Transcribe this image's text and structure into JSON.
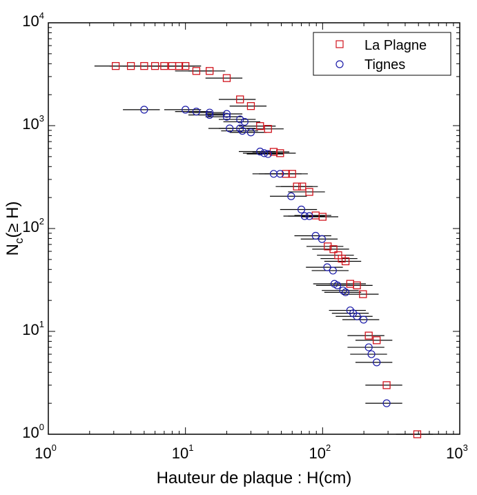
{
  "chart_data": {
    "type": "scatter",
    "xlabel": "Hauteur de plaque : H(cm)",
    "ylabel": {
      "main": "N",
      "sub": "c",
      "rest": "(≥ H)"
    },
    "x_scale": "log",
    "y_scale": "log",
    "xlim": [
      1,
      1000
    ],
    "ylim": [
      1,
      10000
    ],
    "x_ticks": [
      {
        "base": "10",
        "exp": "0",
        "value": 1
      },
      {
        "base": "10",
        "exp": "1",
        "value": 10
      },
      {
        "base": "10",
        "exp": "2",
        "value": 100
      },
      {
        "base": "10",
        "exp": "3",
        "value": 1000
      }
    ],
    "y_ticks": [
      {
        "base": "10",
        "exp": "0",
        "value": 1
      },
      {
        "base": "10",
        "exp": "1",
        "value": 10
      },
      {
        "base": "10",
        "exp": "2",
        "value": 100
      },
      {
        "base": "10",
        "exp": "3",
        "value": 1000
      },
      {
        "base": "10",
        "exp": "4",
        "value": 10000
      }
    ],
    "grid": false,
    "legend_position": "top-right",
    "x_error_relative": 0.3,
    "series": [
      {
        "name": "La Plagne",
        "marker": "square",
        "color": "#d0121b",
        "points": [
          [
            3.1,
            3800
          ],
          [
            4,
            3800
          ],
          [
            5,
            3800
          ],
          [
            6,
            3800
          ],
          [
            7,
            3800
          ],
          [
            8,
            3800
          ],
          [
            9,
            3800
          ],
          [
            10,
            3800
          ],
          [
            12,
            3400
          ],
          [
            15,
            3400
          ],
          [
            20,
            2900
          ],
          [
            25,
            1800
          ],
          [
            30,
            1550
          ],
          [
            35,
            990
          ],
          [
            40,
            930
          ],
          [
            44,
            556
          ],
          [
            49,
            540
          ],
          [
            54,
            340
          ],
          [
            60,
            340
          ],
          [
            65,
            256
          ],
          [
            71,
            256
          ],
          [
            80,
            227
          ],
          [
            89,
            134
          ],
          [
            100,
            130
          ],
          [
            109,
            67
          ],
          [
            120,
            63
          ],
          [
            130,
            55
          ],
          [
            138,
            51
          ],
          [
            147,
            48
          ],
          [
            159,
            29
          ],
          [
            178,
            28
          ],
          [
            197,
            23
          ],
          [
            217,
            9.1
          ],
          [
            248,
            8.2
          ],
          [
            293,
            3.0
          ],
          [
            490,
            1.0
          ]
        ]
      },
      {
        "name": "Tignes",
        "marker": "circle",
        "color": "#1a1aa8",
        "points": [
          [
            5,
            1430
          ],
          [
            10,
            1430
          ],
          [
            12,
            1370
          ],
          [
            15,
            1340
          ],
          [
            15,
            1270
          ],
          [
            20,
            1300
          ],
          [
            20,
            1220
          ],
          [
            25,
            1150
          ],
          [
            27,
            1090
          ],
          [
            21,
            940
          ],
          [
            25,
            940
          ],
          [
            26,
            890
          ],
          [
            30,
            860
          ],
          [
            35,
            560
          ],
          [
            37.5,
            540
          ],
          [
            40,
            530
          ],
          [
            44,
            340
          ],
          [
            49,
            340
          ],
          [
            59,
            206
          ],
          [
            70,
            153
          ],
          [
            74,
            132
          ],
          [
            80,
            132
          ],
          [
            89,
            85
          ],
          [
            99,
            79
          ],
          [
            108,
            42
          ],
          [
            119,
            39
          ],
          [
            122,
            29
          ],
          [
            128,
            28
          ],
          [
            141,
            25
          ],
          [
            147,
            24
          ],
          [
            159,
            16
          ],
          [
            167,
            15
          ],
          [
            178,
            14
          ],
          [
            199,
            13
          ],
          [
            217,
            7
          ],
          [
            227,
            6
          ],
          [
            248,
            5
          ],
          [
            293,
            2
          ]
        ]
      }
    ]
  }
}
